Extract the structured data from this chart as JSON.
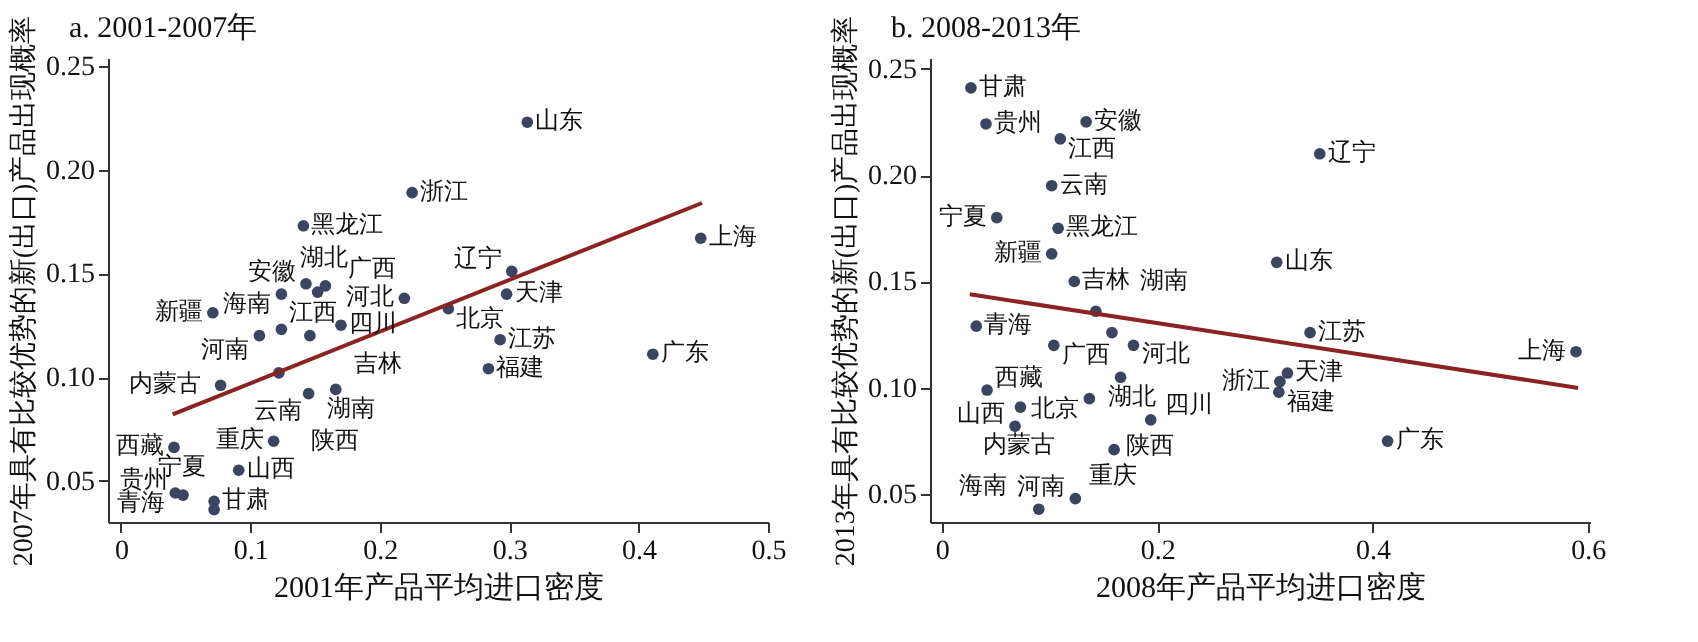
{
  "chart_data": [
    {
      "type": "scatter",
      "title": "a. 2001-2007年",
      "xlabel": "2001年产品平均进口密度",
      "ylabel": "2007年具有比较优势的新(出口)产品出现概率",
      "xlim": [
        -0.01,
        0.5
      ],
      "xticks": [
        0,
        0.1,
        0.2,
        0.3,
        0.4,
        0.5
      ],
      "ylim": [
        0.03,
        0.254
      ],
      "yticks": [
        {
          "value": 0.05,
          "label": "0.05"
        },
        {
          "value": 0.1,
          "label": "0.10"
        },
        {
          "value": 0.15,
          "label": "0.15"
        },
        {
          "value": 0.2,
          "label": "0.20"
        },
        {
          "value": 0.25,
          "label": "0.25"
        }
      ],
      "grid": false,
      "series": [
        {
          "marker": "circle",
          "color": "#3b4461",
          "x": [
            0.314,
            0.225,
            0.141,
            0.448,
            0.302,
            0.298,
            0.253,
            0.219,
            0.143,
            0.124,
            0.152,
            0.158,
            0.071,
            0.124,
            0.107,
            0.146,
            0.17,
            0.293,
            0.411,
            0.284,
            0.122,
            0.077,
            0.145,
            0.166,
            0.118,
            0.041,
            0.091,
            0.072,
            0.072,
            0.042,
            0.048
          ],
          "values": [
            0.223,
            0.189,
            0.173,
            0.167,
            0.151,
            0.14,
            0.133,
            0.138,
            0.145,
            0.14,
            0.141,
            0.144,
            0.131,
            0.123,
            0.12,
            0.12,
            0.125,
            0.118,
            0.111,
            0.104,
            0.102,
            0.096,
            0.092,
            0.094,
            0.069,
            0.066,
            0.055,
            0.04,
            0.036,
            0.044,
            0.043
          ]
        },
        {
          "type": "line",
          "color": "#8b2323",
          "x": [
            0.04,
            0.449
          ],
          "values": [
            0.082,
            0.184
          ]
        }
      ],
      "annotations": [
        {
          "text": "山东",
          "x": 0.314,
          "y": 0.223
        },
        {
          "text": "浙江",
          "x": 0.225,
          "y": 0.189
        },
        {
          "text": "黑龙江",
          "x": 0.141,
          "y": 0.173
        },
        {
          "text": "上海",
          "x": 0.448,
          "y": 0.167
        },
        {
          "text": "辽宁",
          "x": 0.302,
          "y": 0.151
        },
        {
          "text": "天津",
          "x": 0.298,
          "y": 0.14
        },
        {
          "text": "北京",
          "x": 0.253,
          "y": 0.133
        },
        {
          "text": "河北",
          "x": 0.219,
          "y": 0.138
        },
        {
          "text": "安徽",
          "x": 0.143,
          "y": 0.145
        },
        {
          "text": "海南",
          "x": 0.124,
          "y": 0.14
        },
        {
          "text": "广西",
          "x": 0.152,
          "y": 0.141
        },
        {
          "text": "湖北",
          "x": 0.158,
          "y": 0.144
        },
        {
          "text": "新疆",
          "x": 0.071,
          "y": 0.131
        },
        {
          "text": "河南",
          "x": 0.124,
          "y": 0.123
        },
        {
          "text": "江西",
          "x": 0.107,
          "y": 0.12
        },
        {
          "text": "吉林",
          "x": 0.146,
          "y": 0.12
        },
        {
          "text": "四川",
          "x": 0.17,
          "y": 0.125
        },
        {
          "text": "江苏",
          "x": 0.293,
          "y": 0.118
        },
        {
          "text": "广东",
          "x": 0.411,
          "y": 0.111
        },
        {
          "text": "福建",
          "x": 0.284,
          "y": 0.104
        },
        {
          "text": "云南",
          "x": 0.122,
          "y": 0.102
        },
        {
          "text": "内蒙古",
          "x": 0.077,
          "y": 0.096
        },
        {
          "text": "湖南",
          "x": 0.145,
          "y": 0.092
        },
        {
          "text": "陕西",
          "x": 0.166,
          "y": 0.094
        },
        {
          "text": "重庆",
          "x": 0.118,
          "y": 0.069
        },
        {
          "text": "西藏",
          "x": 0.041,
          "y": 0.066
        },
        {
          "text": "山西",
          "x": 0.091,
          "y": 0.055
        },
        {
          "text": "甘肃",
          "x": 0.072,
          "y": 0.04
        },
        {
          "text": "贵州",
          "x": 0.072,
          "y": 0.036
        },
        {
          "text": "青海",
          "x": 0.042,
          "y": 0.044
        },
        {
          "text": "宁夏",
          "x": 0.048,
          "y": 0.043
        }
      ]
    },
    {
      "type": "scatter",
      "title": "b. 2008-2013年",
      "xlabel": "2008年产品平均进口密度",
      "ylabel": "2013年具有比较优势的新(出口)产品出现概率",
      "xlim": [
        -0.011,
        0.602
      ],
      "xticks": [
        0,
        0.2,
        0.4,
        0.6
      ],
      "ylim": [
        0.037,
        0.255
      ],
      "yticks": [
        {
          "value": 0.05,
          "label": "0.05"
        },
        {
          "value": 0.1,
          "label": "0.10"
        },
        {
          "value": 0.15,
          "label": "0.15"
        },
        {
          "value": 0.2,
          "label": "0.20"
        },
        {
          "value": 0.25,
          "label": "0.25"
        }
      ],
      "grid": false,
      "series": [
        {
          "marker": "circle",
          "color": "#3b4461",
          "x": [
            0.027,
            0.041,
            0.134,
            0.11,
            0.351,
            0.102,
            0.051,
            0.108,
            0.102,
            0.311,
            0.123,
            0.143,
            0.032,
            0.158,
            0.342,
            0.104,
            0.178,
            0.589,
            0.321,
            0.166,
            0.314,
            0.313,
            0.042,
            0.137,
            0.073,
            0.194,
            0.068,
            0.414,
            0.16,
            0.124,
            0.09
          ],
          "values": [
            0.241,
            0.224,
            0.225,
            0.217,
            0.21,
            0.195,
            0.18,
            0.175,
            0.163,
            0.159,
            0.15,
            0.136,
            0.129,
            0.126,
            0.126,
            0.12,
            0.12,
            0.117,
            0.107,
            0.105,
            0.103,
            0.098,
            0.099,
            0.095,
            0.091,
            0.085,
            0.082,
            0.075,
            0.071,
            0.048,
            0.043
          ]
        },
        {
          "type": "line",
          "color": "#8b2323",
          "x": [
            0.026,
            0.591
          ],
          "values": [
            0.144,
            0.1
          ]
        }
      ],
      "annotations": [
        {
          "text": "甘肃",
          "x": 0.027,
          "y": 0.241
        },
        {
          "text": "贵州",
          "x": 0.041,
          "y": 0.224
        },
        {
          "text": "安徽",
          "x": 0.134,
          "y": 0.225
        },
        {
          "text": "江西",
          "x": 0.11,
          "y": 0.217
        },
        {
          "text": "辽宁",
          "x": 0.351,
          "y": 0.21
        },
        {
          "text": "云南",
          "x": 0.102,
          "y": 0.195
        },
        {
          "text": "宁夏",
          "x": 0.051,
          "y": 0.18
        },
        {
          "text": "黑龙江",
          "x": 0.108,
          "y": 0.175
        },
        {
          "text": "新疆",
          "x": 0.102,
          "y": 0.163
        },
        {
          "text": "山东",
          "x": 0.311,
          "y": 0.159
        },
        {
          "text": "吉林",
          "x": 0.123,
          "y": 0.15
        },
        {
          "text": "湖南",
          "x": 0.143,
          "y": 0.136
        },
        {
          "text": "青海",
          "x": 0.032,
          "y": 0.129
        },
        {
          "text": "河北",
          "x": 0.158,
          "y": 0.126
        },
        {
          "text": "江苏",
          "x": 0.342,
          "y": 0.126
        },
        {
          "text": "广西",
          "x": 0.104,
          "y": 0.12
        },
        {
          "text": "湖北",
          "x": 0.178,
          "y": 0.12
        },
        {
          "text": "上海",
          "x": 0.589,
          "y": 0.117
        },
        {
          "text": "天津",
          "x": 0.321,
          "y": 0.107
        },
        {
          "text": "四川",
          "x": 0.166,
          "y": 0.105
        },
        {
          "text": "浙江",
          "x": 0.314,
          "y": 0.103
        },
        {
          "text": "福建",
          "x": 0.313,
          "y": 0.098
        },
        {
          "text": "西藏",
          "x": 0.042,
          "y": 0.099
        },
        {
          "text": "北京",
          "x": 0.137,
          "y": 0.095
        },
        {
          "text": "内蒙古",
          "x": 0.073,
          "y": 0.091
        },
        {
          "text": "陕西",
          "x": 0.194,
          "y": 0.085
        },
        {
          "text": "山西",
          "x": 0.068,
          "y": 0.082
        },
        {
          "text": "广东",
          "x": 0.414,
          "y": 0.075
        },
        {
          "text": "重庆",
          "x": 0.16,
          "y": 0.071
        },
        {
          "text": "河南",
          "x": 0.124,
          "y": 0.048
        },
        {
          "text": "海南",
          "x": 0.09,
          "y": 0.043
        }
      ]
    }
  ]
}
